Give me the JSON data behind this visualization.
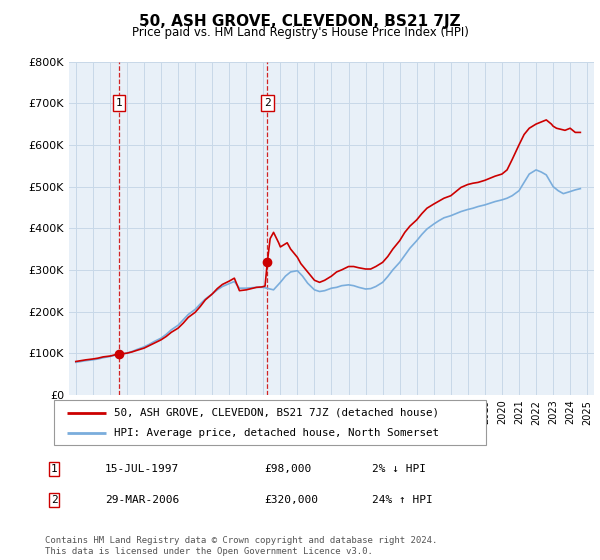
{
  "title": "50, ASH GROVE, CLEVEDON, BS21 7JZ",
  "subtitle": "Price paid vs. HM Land Registry's House Price Index (HPI)",
  "footer": "Contains HM Land Registry data © Crown copyright and database right 2024.\nThis data is licensed under the Open Government Licence v3.0.",
  "legend_line1": "50, ASH GROVE, CLEVEDON, BS21 7JZ (detached house)",
  "legend_line2": "HPI: Average price, detached house, North Somerset",
  "sale1_date": "15-JUL-1997",
  "sale1_price": "£98,000",
  "sale1_hpi": "2% ↓ HPI",
  "sale1_year": 1997.54,
  "sale1_value": 98000,
  "sale2_date": "29-MAR-2006",
  "sale2_price": "£320,000",
  "sale2_hpi": "24% ↑ HPI",
  "sale2_year": 2006.24,
  "sale2_value": 320000,
  "ylim": [
    0,
    800000
  ],
  "xlim": [
    1994.6,
    2025.4
  ],
  "yticks": [
    0,
    100000,
    200000,
    300000,
    400000,
    500000,
    600000,
    700000,
    800000
  ],
  "ytick_labels": [
    "£0",
    "£100K",
    "£200K",
    "£300K",
    "£400K",
    "£500K",
    "£600K",
    "£700K",
    "£800K"
  ],
  "red_color": "#cc0000",
  "blue_color": "#7aaddc",
  "grid_color": "#c8d8e8",
  "plot_bg_color": "#e8f0f8",
  "dashed_color": "#cc0000",
  "red_years": [
    1995.0,
    1995.3,
    1995.6,
    1996.0,
    1996.3,
    1996.6,
    1997.0,
    1997.3,
    1997.54,
    1997.8,
    1998.0,
    1998.3,
    1998.6,
    1999.0,
    1999.3,
    1999.6,
    2000.0,
    2000.3,
    2000.6,
    2001.0,
    2001.3,
    2001.6,
    2002.0,
    2002.3,
    2002.6,
    2003.0,
    2003.3,
    2003.6,
    2004.0,
    2004.3,
    2004.6,
    2005.0,
    2005.3,
    2005.6,
    2005.9,
    2006.0,
    2006.1,
    2006.24,
    2006.4,
    2006.6,
    2006.9,
    2007.0,
    2007.2,
    2007.4,
    2007.6,
    2007.8,
    2008.0,
    2008.2,
    2008.5,
    2008.8,
    2009.0,
    2009.3,
    2009.6,
    2010.0,
    2010.3,
    2010.6,
    2011.0,
    2011.3,
    2011.6,
    2012.0,
    2012.3,
    2012.6,
    2013.0,
    2013.3,
    2013.6,
    2014.0,
    2014.3,
    2014.6,
    2015.0,
    2015.3,
    2015.6,
    2016.0,
    2016.3,
    2016.6,
    2017.0,
    2017.3,
    2017.6,
    2018.0,
    2018.3,
    2018.6,
    2019.0,
    2019.3,
    2019.6,
    2020.0,
    2020.3,
    2020.6,
    2021.0,
    2021.3,
    2021.6,
    2022.0,
    2022.3,
    2022.6,
    2022.9,
    2023.0,
    2023.2,
    2023.4,
    2023.7,
    2024.0,
    2024.3,
    2024.6
  ],
  "red_values": [
    80000,
    82000,
    84000,
    86000,
    88000,
    91000,
    93000,
    96000,
    98000,
    99000,
    100000,
    103000,
    107000,
    112000,
    118000,
    124000,
    132000,
    140000,
    150000,
    160000,
    172000,
    186000,
    198000,
    212000,
    228000,
    242000,
    255000,
    265000,
    273000,
    280000,
    250000,
    252000,
    255000,
    258000,
    259000,
    260000,
    261000,
    320000,
    375000,
    390000,
    365000,
    355000,
    360000,
    365000,
    350000,
    340000,
    330000,
    315000,
    300000,
    285000,
    275000,
    270000,
    275000,
    285000,
    295000,
    300000,
    308000,
    308000,
    305000,
    302000,
    302000,
    308000,
    318000,
    332000,
    350000,
    370000,
    390000,
    405000,
    420000,
    435000,
    448000,
    458000,
    465000,
    472000,
    478000,
    488000,
    498000,
    505000,
    508000,
    510000,
    515000,
    520000,
    525000,
    530000,
    540000,
    565000,
    600000,
    625000,
    640000,
    650000,
    655000,
    660000,
    650000,
    645000,
    640000,
    638000,
    635000,
    640000,
    630000,
    630000
  ],
  "blue_years": [
    1995.0,
    1995.3,
    1995.6,
    1996.0,
    1996.3,
    1996.6,
    1997.0,
    1997.3,
    1997.6,
    1998.0,
    1998.3,
    1998.6,
    1999.0,
    1999.3,
    1999.6,
    2000.0,
    2000.3,
    2000.6,
    2001.0,
    2001.3,
    2001.6,
    2002.0,
    2002.3,
    2002.6,
    2003.0,
    2003.3,
    2003.6,
    2004.0,
    2004.3,
    2004.6,
    2005.0,
    2005.3,
    2005.6,
    2006.0,
    2006.3,
    2006.6,
    2007.0,
    2007.3,
    2007.6,
    2008.0,
    2008.3,
    2008.6,
    2009.0,
    2009.3,
    2009.6,
    2010.0,
    2010.3,
    2010.6,
    2011.0,
    2011.3,
    2011.6,
    2012.0,
    2012.3,
    2012.6,
    2013.0,
    2013.3,
    2013.6,
    2014.0,
    2014.3,
    2014.6,
    2015.0,
    2015.3,
    2015.6,
    2016.0,
    2016.3,
    2016.6,
    2017.0,
    2017.3,
    2017.6,
    2018.0,
    2018.3,
    2018.6,
    2019.0,
    2019.3,
    2019.6,
    2020.0,
    2020.3,
    2020.6,
    2021.0,
    2021.3,
    2021.6,
    2022.0,
    2022.3,
    2022.6,
    2023.0,
    2023.3,
    2023.6,
    2024.0,
    2024.3,
    2024.6
  ],
  "blue_values": [
    78000,
    80000,
    82000,
    84000,
    86000,
    89000,
    92000,
    95000,
    97000,
    100000,
    104000,
    109000,
    115000,
    121000,
    128000,
    136000,
    145000,
    156000,
    167000,
    180000,
    193000,
    205000,
    218000,
    230000,
    242000,
    252000,
    260000,
    267000,
    272000,
    256000,
    256000,
    257000,
    258000,
    258000,
    255000,
    252000,
    270000,
    285000,
    295000,
    298000,
    285000,
    268000,
    252000,
    248000,
    250000,
    256000,
    258000,
    262000,
    264000,
    262000,
    258000,
    254000,
    255000,
    260000,
    270000,
    284000,
    300000,
    318000,
    335000,
    352000,
    370000,
    385000,
    398000,
    410000,
    418000,
    425000,
    430000,
    435000,
    440000,
    445000,
    448000,
    452000,
    456000,
    460000,
    464000,
    468000,
    472000,
    478000,
    490000,
    510000,
    530000,
    540000,
    535000,
    528000,
    500000,
    490000,
    483000,
    488000,
    492000,
    495000
  ]
}
